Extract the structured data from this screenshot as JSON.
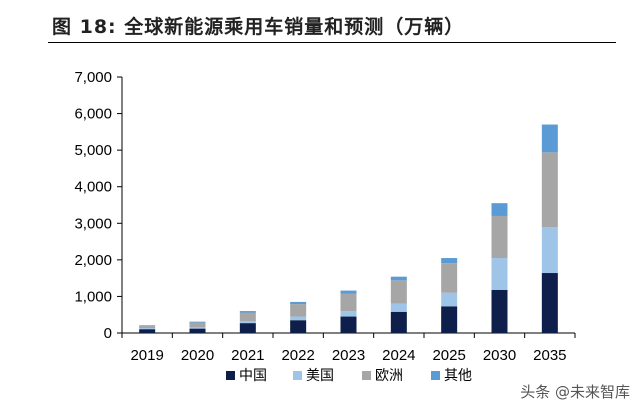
{
  "title": "图 18:  全球新能源乘用车销量和预测（万辆）",
  "watermark": "头条 @未来智库",
  "colors": {
    "中国": "#0d1f4a",
    "美国": "#9ec5e8",
    "欧洲": "#a6a6a6",
    "其他": "#5b9bd5"
  },
  "chart_data": {
    "type": "bar",
    "stacked": true,
    "categories": [
      "2019",
      "2020",
      "2021",
      "2022",
      "2023",
      "2024",
      "2025",
      "2030",
      "2035"
    ],
    "series": [
      {
        "name": "中国",
        "values": [
          105,
          120,
          270,
          350,
          450,
          580,
          730,
          1180,
          1640
        ]
      },
      {
        "name": "美国",
        "values": [
          30,
          35,
          55,
          100,
          150,
          220,
          370,
          870,
          1250
        ]
      },
      {
        "name": "欧洲",
        "values": [
          55,
          130,
          235,
          340,
          480,
          640,
          810,
          1150,
          2050
        ]
      },
      {
        "name": "其他",
        "values": [
          20,
          25,
          40,
          60,
          80,
          100,
          140,
          350,
          760
        ]
      }
    ],
    "ylim": [
      0,
      7000
    ],
    "yticks": [
      "0",
      "1,000",
      "2,000",
      "3,000",
      "4,000",
      "5,000",
      "6,000",
      "7,000"
    ],
    "legend": "bottom",
    "grid": false
  }
}
